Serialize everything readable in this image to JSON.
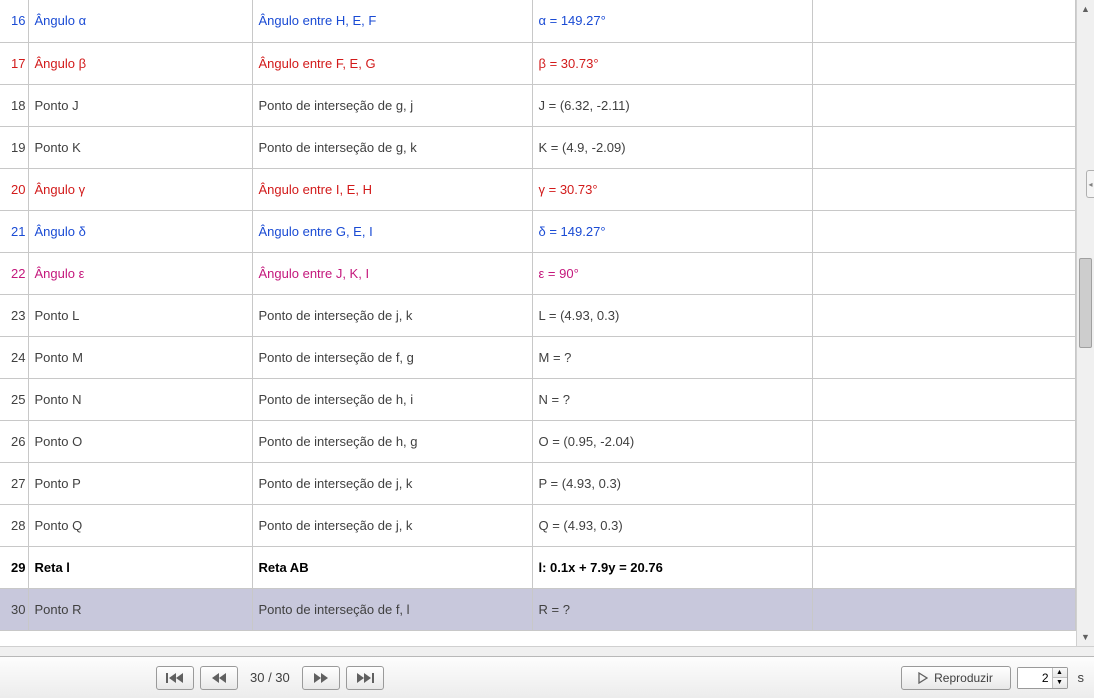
{
  "colors": {
    "black": "#404040",
    "blue": "#1a4bd4",
    "red": "#d21a1a",
    "magenta": "#c4187c",
    "bold": "#000000"
  },
  "rows": [
    {
      "n": 16,
      "name": "Ângulo α",
      "desc": "Ângulo entre H, E, F",
      "value": "α = 149.27°",
      "colorKey": "blue"
    },
    {
      "n": 17,
      "name": "Ângulo β",
      "desc": "Ângulo entre F, E, G",
      "value": "β = 30.73°",
      "colorKey": "red"
    },
    {
      "n": 18,
      "name": "Ponto J",
      "desc": "Ponto de interseção de g, j",
      "value": "J = (6.32, -2.11)",
      "colorKey": "black"
    },
    {
      "n": 19,
      "name": "Ponto K",
      "desc": "Ponto de interseção de g, k",
      "value": "K = (4.9, -2.09)",
      "colorKey": "black"
    },
    {
      "n": 20,
      "name": "Ângulo γ",
      "desc": "Ângulo entre I, E, H",
      "value": "γ = 30.73°",
      "colorKey": "red"
    },
    {
      "n": 21,
      "name": "Ângulo δ",
      "desc": "Ângulo entre G, E, I",
      "value": "δ = 149.27°",
      "colorKey": "blue"
    },
    {
      "n": 22,
      "name": "Ângulo ε",
      "desc": "Ângulo entre J, K, I",
      "value": "ε = 90°",
      "colorKey": "magenta"
    },
    {
      "n": 23,
      "name": "Ponto L",
      "desc": "Ponto de interseção de j, k",
      "value": "L = (4.93, 0.3)",
      "colorKey": "black"
    },
    {
      "n": 24,
      "name": "Ponto M",
      "desc": "Ponto de interseção de f, g",
      "value": "M = ?",
      "colorKey": "black"
    },
    {
      "n": 25,
      "name": "Ponto N",
      "desc": "Ponto de interseção de h, i",
      "value": "N = ?",
      "colorKey": "black"
    },
    {
      "n": 26,
      "name": "Ponto O",
      "desc": "Ponto de interseção de h, g",
      "value": "O = (0.95, -2.04)",
      "colorKey": "black"
    },
    {
      "n": 27,
      "name": "Ponto P",
      "desc": "Ponto de interseção de j, k",
      "value": "P = (4.93, 0.3)",
      "colorKey": "black"
    },
    {
      "n": 28,
      "name": "Ponto Q",
      "desc": "Ponto de interseção de j, k",
      "value": "Q = (4.93, 0.3)",
      "colorKey": "black"
    },
    {
      "n": 29,
      "name": "Reta l",
      "desc": "Reta AB",
      "value": "l: 0.1x + 7.9y = 20.76",
      "colorKey": "bold",
      "bold": true
    },
    {
      "n": 30,
      "name": "Ponto R",
      "desc": "Ponto de interseção de f, l",
      "value": "R = ?",
      "colorKey": "black",
      "selected": true
    }
  ],
  "footer": {
    "step_counter": "30 / 30",
    "play_label": "Reproduzir",
    "speed_value": "2",
    "speed_unit": "s"
  }
}
